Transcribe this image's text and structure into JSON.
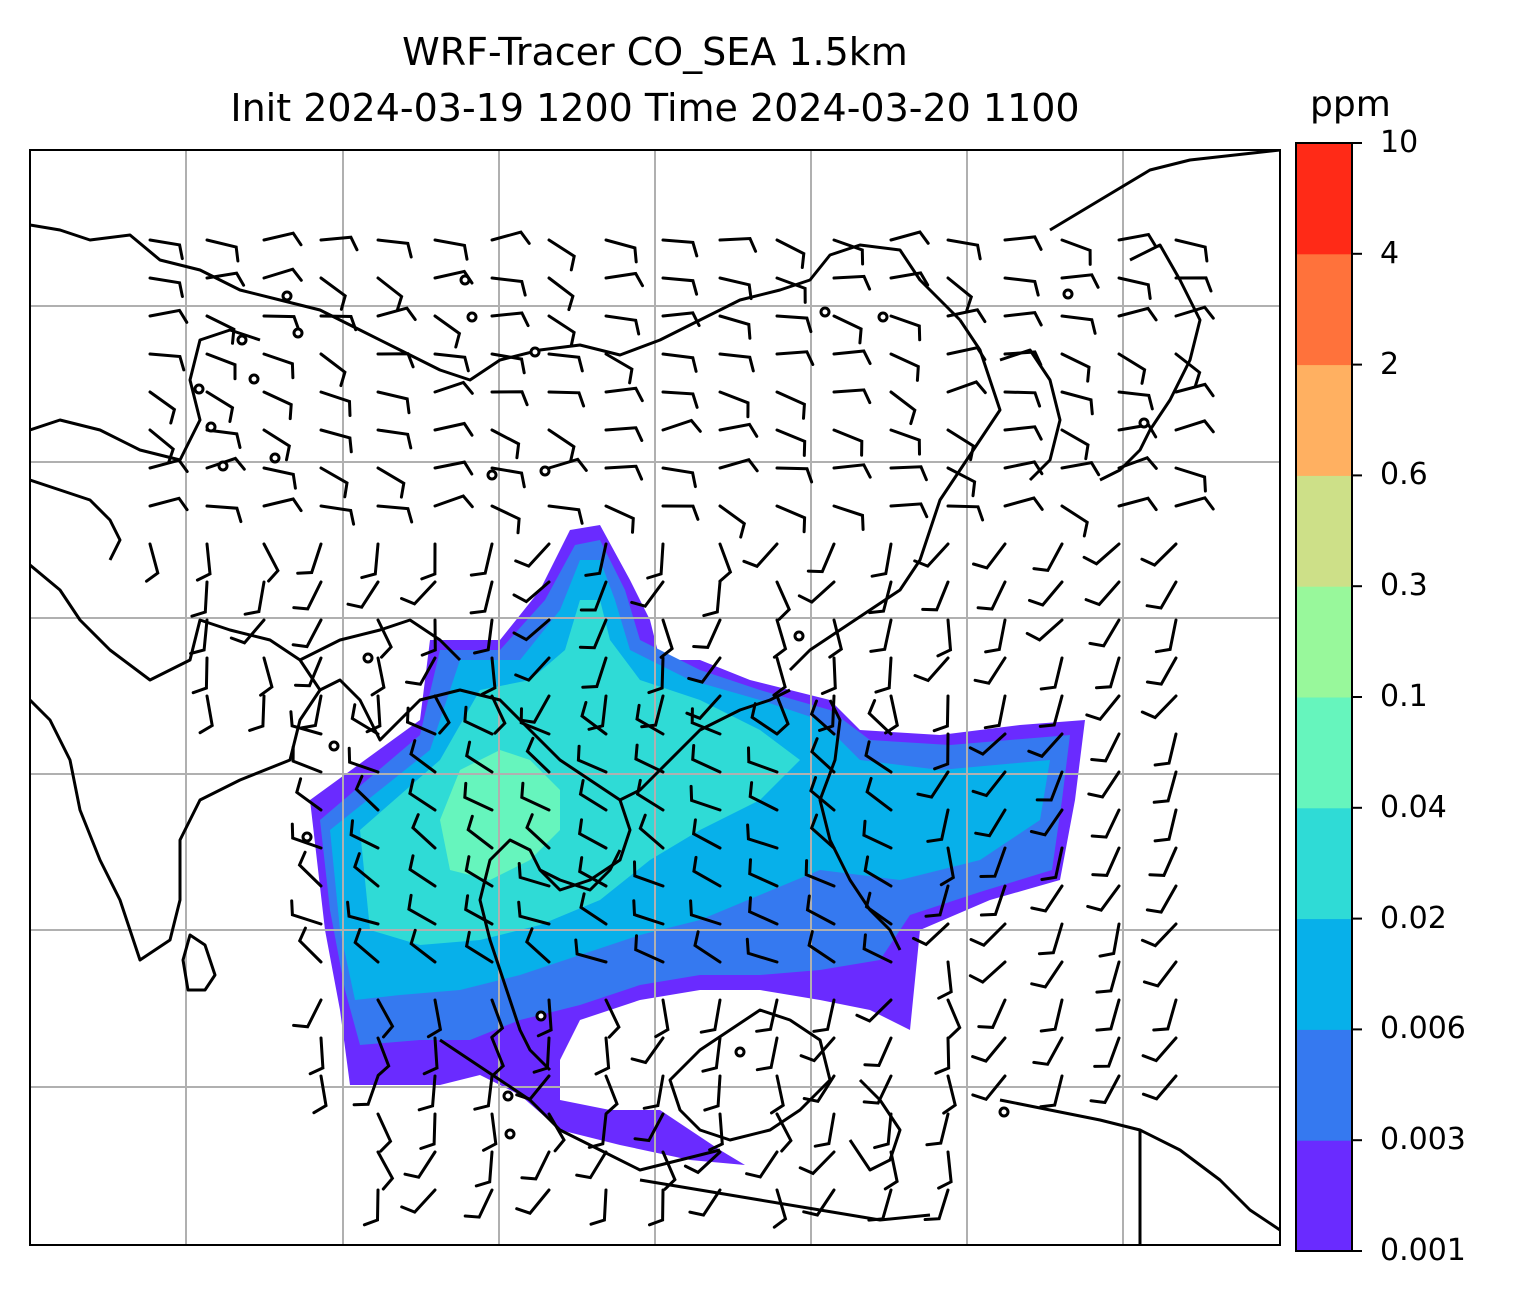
{
  "title": {
    "line1": "WRF-Tracer CO_SEA 1.5km",
    "line2": "Init 2024-03-19 1200 Time 2024-03-20 1100"
  },
  "colorbar": {
    "unit": "ppm",
    "ticks": [
      "0.001",
      "0.003",
      "0.006",
      "0.02",
      "0.04",
      "0.1",
      "0.3",
      "0.6",
      "2",
      "4",
      "10"
    ],
    "colors": [
      "#6a2bff",
      "#3579f0",
      "#07b0ea",
      "#2fdbd6",
      "#66f5bd",
      "#98f89b",
      "#cde088",
      "#ffb061",
      "#ff723b",
      "#ff2a17"
    ]
  },
  "map": {
    "gridlines": true,
    "plume_colors": {
      "outer": "#6a2bff",
      "low": "#3579f0",
      "mid": "#07b0ea",
      "high": "#2fdbd6",
      "peak": "#66f5bd"
    },
    "wind_barbs": true
  }
}
